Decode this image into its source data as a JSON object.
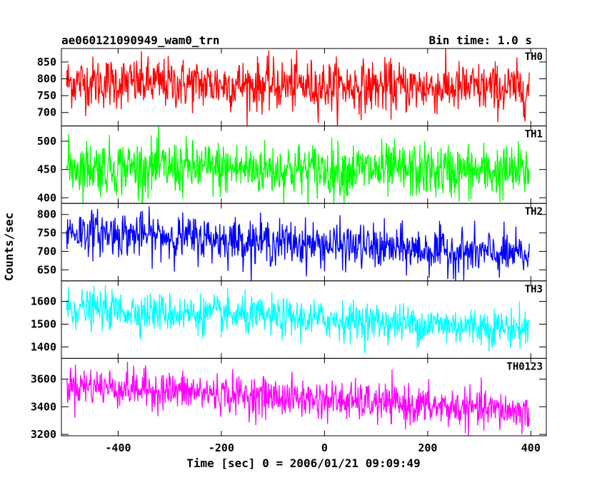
{
  "title_left": "ae060121090949_wam0_trn",
  "title_right": "Bin time: 1.0 s",
  "chart_data": {
    "type": "line",
    "title": "ae060121090949_wam0_trn",
    "subtitle": "Bin time: 1.0 s",
    "xlabel": "Time [sec] 0 = 2006/01/21 09:09:49",
    "ylabel": "Counts/sec",
    "xlim": [
      -510,
      430
    ],
    "x_range_data": [
      -500,
      397
    ],
    "x_ticks": [
      -400,
      -200,
      0,
      200,
      400
    ],
    "grid": false,
    "panels": [
      {
        "name": "TH0",
        "color": "#ff0000",
        "ylim": [
          660,
          890
        ],
        "y_ticks": [
          700,
          750,
          800,
          850
        ],
        "start_mean": 790,
        "end_mean": 770,
        "noise": 38
      },
      {
        "name": "TH1",
        "color": "#00ff00",
        "ylim": [
          390,
          527
        ],
        "y_ticks": [
          400,
          450,
          500
        ],
        "start_mean": 455,
        "end_mean": 445,
        "noise": 24
      },
      {
        "name": "TH2",
        "color": "#0000ff",
        "ylim": [
          620,
          830
        ],
        "y_ticks": [
          650,
          700,
          750,
          800
        ],
        "start_mean": 755,
        "end_mean": 688,
        "noise": 30
      },
      {
        "name": "TH3",
        "color": "#00ffff",
        "ylim": [
          1350,
          1690
        ],
        "y_ticks": [
          1400,
          1500,
          1600
        ],
        "start_mean": 1570,
        "end_mean": 1480,
        "noise": 42
      },
      {
        "name": "TH0123",
        "color": "#ff00ff",
        "ylim": [
          3190,
          3750
        ],
        "y_ticks": [
          3200,
          3400,
          3600
        ],
        "start_mean": 3560,
        "end_mean": 3360,
        "noise": 70
      }
    ]
  }
}
